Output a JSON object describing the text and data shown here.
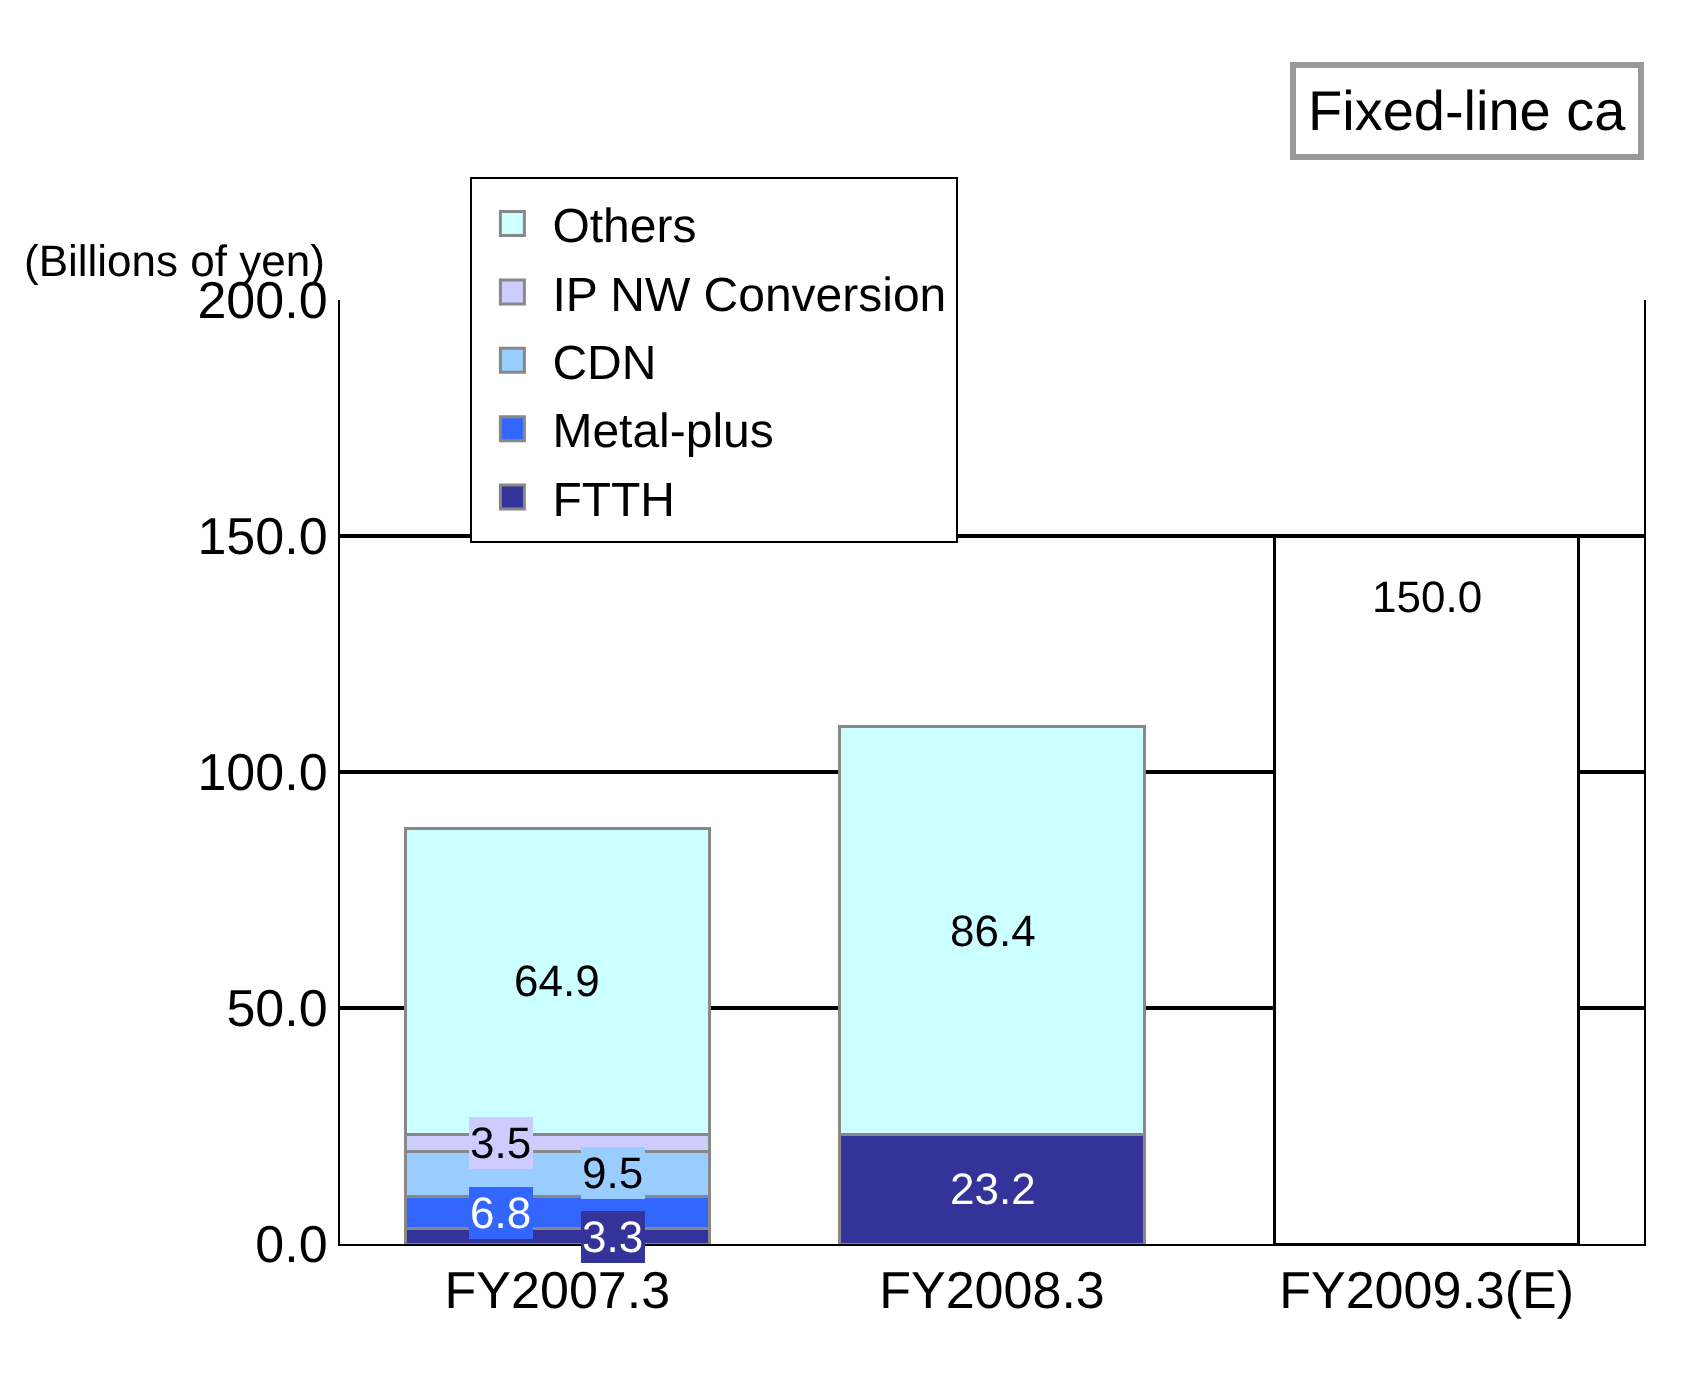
{
  "chart_data": {
    "type": "bar",
    "title": "Fixed-line ca",
    "ylabel": "(Billions of yen)",
    "categories": [
      "FY2007.3",
      "FY2008.3",
      "FY2009.3(E)"
    ],
    "stacked": true,
    "data_labels": true,
    "grid": "y",
    "legend": "top left",
    "ylim": [
      0,
      200
    ],
    "yticks": [
      {
        "value": 0,
        "label": "0.0"
      },
      {
        "value": 50,
        "label": "50.0"
      },
      {
        "value": 100,
        "label": "100.0"
      },
      {
        "value": 150,
        "label": "150.0"
      },
      {
        "value": 200,
        "label": "200.0"
      }
    ],
    "series": [
      {
        "name": "FTTH",
        "color": "#333399",
        "values": [
          3.3,
          23.2,
          null
        ]
      },
      {
        "name": "Metal-plus",
        "color": "#3366ff",
        "values": [
          6.8,
          null,
          null
        ]
      },
      {
        "name": "CDN",
        "color": "#99ccff",
        "values": [
          9.5,
          null,
          null
        ]
      },
      {
        "name": "IP NW Conversion",
        "color": "#ccccff",
        "values": [
          3.5,
          null,
          null
        ]
      },
      {
        "name": "Others",
        "color": "#ccffff",
        "values": [
          64.9,
          86.4,
          null
        ]
      },
      {
        "color": "#ffffff",
        "values": [
          null,
          null,
          150.0
        ],
        "value_labels": [
          null,
          null,
          "150.0"
        ]
      }
    ]
  }
}
